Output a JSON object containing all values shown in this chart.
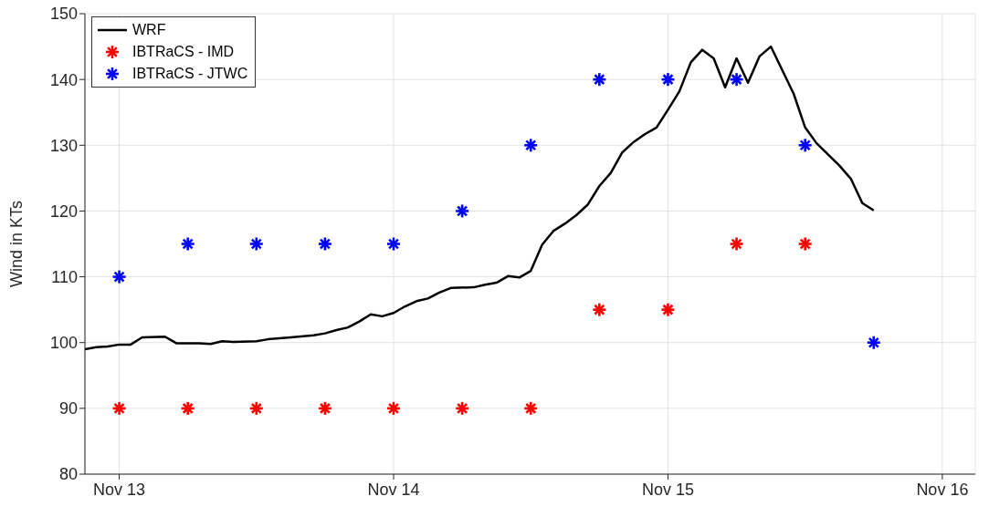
{
  "chart_data": {
    "type": "line",
    "ylabel": "Wind in KTs",
    "xlim": [
      "--11-12T21:00",
      "--11-16T02:53"
    ],
    "xticks": [
      {
        "value": "--11-13",
        "label": "Nov 13"
      },
      {
        "value": "--11-14",
        "label": "Nov 14"
      },
      {
        "value": "--11-15",
        "label": "Nov 15"
      },
      {
        "value": "--11-16",
        "label": "Nov 16"
      }
    ],
    "ylim": [
      80,
      150
    ],
    "yticks": [
      80,
      90,
      100,
      110,
      120,
      130,
      140,
      150
    ],
    "grid": true,
    "legend": "top left",
    "series": [
      {
        "name": "WRF",
        "color": "#000000",
        "marker": "none",
        "line_style": "solid",
        "x": [
          "--11-12T21:00",
          "--11-12T22:00",
          "--11-12T23:00",
          "--11-13T00:00",
          "--11-13T01:00",
          "--11-13T02:00",
          "--11-13T04:00",
          "--11-13T05:00",
          "--11-13T07:00",
          "--11-13T08:00",
          "--11-13T09:00",
          "--11-13T10:00",
          "--11-13T12:00",
          "--11-13T13:00",
          "--11-13T15:00",
          "--11-13T17:00",
          "--11-13T18:00",
          "--11-13T19:00",
          "--11-13T20:00",
          "--11-13T21:00",
          "--11-13T22:00",
          "--11-13T23:00",
          "--11-14T00:00",
          "--11-14T01:00",
          "--11-14T02:00",
          "--11-14T03:00",
          "--11-14T04:00",
          "--11-14T05:00",
          "--11-14T07:00",
          "--11-14T08:00",
          "--11-14T09:00",
          "--11-14T10:00",
          "--11-14T11:00",
          "--11-14T12:00",
          "--11-14T13:00",
          "--11-14T14:00",
          "--11-14T15:00",
          "--11-14T16:00",
          "--11-14T17:00",
          "--11-14T18:00",
          "--11-14T19:00",
          "--11-14T20:00",
          "--11-14T21:00",
          "--11-14T22:00",
          "--11-14T23:00",
          "--11-15T00:00",
          "--11-15T01:00",
          "--11-15T02:00",
          "--11-15T03:00",
          "--11-15T04:00",
          "--11-15T05:00",
          "--11-15T06:00",
          "--11-15T07:00",
          "--11-15T08:00",
          "--11-15T09:00",
          "--11-15T10:00",
          "--11-15T11:00",
          "--11-15T12:00",
          "--11-15T13:00",
          "--11-15T15:00",
          "--11-15T16:00",
          "--11-15T17:00",
          "--11-15T18:00"
        ],
        "values": [
          99.0,
          99.3,
          99.4,
          99.7,
          99.7,
          100.8,
          100.9,
          99.9,
          99.9,
          99.8,
          100.2,
          100.1,
          100.2,
          100.5,
          100.8,
          101.1,
          101.4,
          101.9,
          102.3,
          103.2,
          104.3,
          104.0,
          104.5,
          105.5,
          106.3,
          106.7,
          107.6,
          108.3,
          108.4,
          108.8,
          109.1,
          110.1,
          109.9,
          110.9,
          114.9,
          117.0,
          118.1,
          119.4,
          121.0,
          123.8,
          125.8,
          128.9,
          130.5,
          131.7,
          132.7,
          135.4,
          138.2,
          142.6,
          144.5,
          143.2,
          138.8,
          143.2,
          139.5,
          143.5,
          145.0,
          141.4,
          137.8,
          132.7,
          130.3,
          126.9,
          124.9,
          121.2,
          120.1
        ]
      },
      {
        "name": "IBTRaCS - IMD",
        "type": "scatter",
        "color": "#ff0000",
        "marker": "cross",
        "x": [
          "--11-13T00:00",
          "--11-13T06:00",
          "--11-13T12:00",
          "--11-13T18:00",
          "--11-14T00:00",
          "--11-14T06:00",
          "--11-14T12:00",
          "--11-14T18:00",
          "--11-15T00:00",
          "--11-15T06:00",
          "--11-15T12:00"
        ],
        "values": [
          90,
          90,
          90,
          90,
          90,
          90,
          90,
          105,
          105,
          115,
          115
        ]
      },
      {
        "name": "IBTRaCS - JTWC",
        "type": "scatter",
        "color": "#0000ff",
        "marker": "cross",
        "x": [
          "--11-13T00:00",
          "--11-13T06:00",
          "--11-13T12:00",
          "--11-13T18:00",
          "--11-14T00:00",
          "--11-14T06:00",
          "--11-14T12:00",
          "--11-14T18:00",
          "--11-15T00:00",
          "--11-15T06:00",
          "--11-15T12:00",
          "--11-15T18:00"
        ],
        "values": [
          110,
          115,
          115,
          115,
          115,
          120,
          130,
          140,
          140,
          140,
          130,
          100
        ]
      }
    ]
  }
}
